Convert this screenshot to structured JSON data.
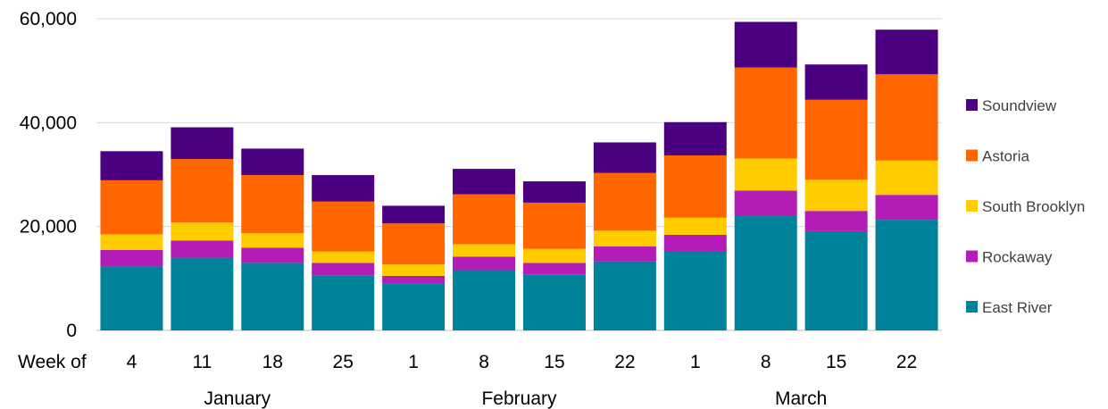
{
  "chart_data": {
    "type": "bar",
    "stacked": true,
    "x_axis_prefix": "Week of",
    "categories": [
      "4",
      "11",
      "18",
      "25",
      "1",
      "8",
      "15",
      "22",
      "1",
      "8",
      "15",
      "22"
    ],
    "month_groups": [
      {
        "label": "January",
        "start": 0,
        "end": 3
      },
      {
        "label": "February",
        "start": 4,
        "end": 7
      },
      {
        "label": "March",
        "start": 8,
        "end": 11
      }
    ],
    "ylim": [
      0,
      60000
    ],
    "yticks": [
      0,
      20000,
      40000,
      60000
    ],
    "ytick_labels": [
      "0",
      "20,000",
      "40,000",
      "60,000"
    ],
    "grid": true,
    "legend_position": "right",
    "series": [
      {
        "name": "East River",
        "color": "#00829A",
        "values": [
          12300,
          14000,
          13000,
          10600,
          9100,
          11600,
          10800,
          13300,
          15300,
          22000,
          19100,
          21300
        ]
      },
      {
        "name": "Rockaway",
        "color": "#B31CB6",
        "values": [
          3200,
          3300,
          2900,
          2400,
          1400,
          2600,
          2200,
          2900,
          3100,
          4900,
          3900,
          4800
        ]
      },
      {
        "name": "South Brooklyn",
        "color": "#FFCC00",
        "values": [
          3000,
          3500,
          2800,
          2200,
          2200,
          2400,
          2700,
          3000,
          3300,
          6200,
          6000,
          6600
        ]
      },
      {
        "name": "Astoria",
        "color": "#FF6600",
        "values": [
          10400,
          12200,
          11200,
          9600,
          7900,
          9600,
          8900,
          11100,
          12000,
          17500,
          15400,
          16600
        ]
      },
      {
        "name": "Soundview",
        "color": "#4B0082",
        "values": [
          5600,
          6100,
          5100,
          5100,
          3400,
          4900,
          4100,
          5900,
          6400,
          8800,
          6800,
          8600
        ]
      }
    ]
  }
}
